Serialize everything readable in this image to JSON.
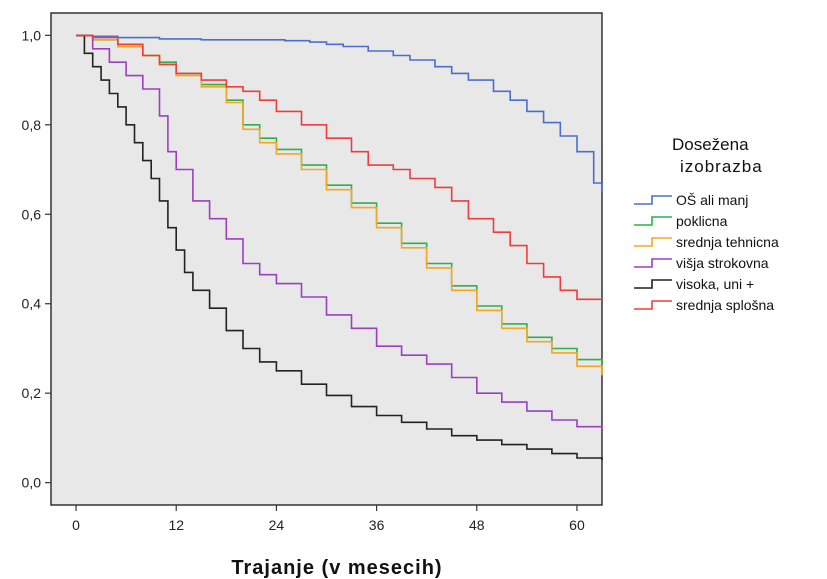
{
  "chart_data": {
    "type": "line",
    "step": true,
    "title": "",
    "xlabel": "Trajanje (v mesecih)",
    "ylabel": "",
    "xlim": [
      -3,
      63
    ],
    "ylim": [
      -0.05,
      1.05
    ],
    "xticks": [
      0,
      12,
      24,
      36,
      48,
      60
    ],
    "xtick_labels": [
      "0",
      "12",
      "24",
      "36",
      "48",
      "60"
    ],
    "yticks": [
      0.0,
      0.2,
      0.4,
      0.6,
      0.8,
      1.0
    ],
    "ytick_labels": [
      "0,0",
      "0,2",
      "0,4",
      "0,6",
      "0,8",
      "1,0"
    ],
    "grid": false,
    "background": "#e8e8e8",
    "legend": {
      "title_line1": "Dosežena",
      "title_line2": "izobrazba",
      "placement": "right"
    },
    "series": [
      {
        "name": "OŠ ali manj",
        "color": "#4a6ecf",
        "x": [
          0,
          2,
          5,
          10,
          15,
          20,
          25,
          28,
          30,
          32,
          35,
          38,
          40,
          43,
          45,
          47,
          50,
          52,
          54,
          56,
          58,
          60,
          62,
          63
        ],
        "y": [
          1.0,
          0.998,
          0.995,
          0.992,
          0.99,
          0.99,
          0.988,
          0.985,
          0.98,
          0.975,
          0.965,
          0.955,
          0.945,
          0.93,
          0.915,
          0.9,
          0.875,
          0.855,
          0.83,
          0.805,
          0.775,
          0.74,
          0.67,
          0.65
        ]
      },
      {
        "name": "poklicna",
        "color": "#2fb04a",
        "x": [
          0,
          2,
          5,
          8,
          10,
          12,
          15,
          18,
          20,
          22,
          24,
          27,
          30,
          33,
          36,
          39,
          42,
          45,
          48,
          51,
          54,
          57,
          60,
          63
        ],
        "y": [
          1.0,
          0.99,
          0.975,
          0.955,
          0.94,
          0.915,
          0.89,
          0.855,
          0.8,
          0.77,
          0.745,
          0.71,
          0.665,
          0.625,
          0.58,
          0.535,
          0.49,
          0.44,
          0.395,
          0.355,
          0.325,
          0.3,
          0.275,
          0.26
        ]
      },
      {
        "name": "srednja tehnicna",
        "color": "#f5a623",
        "x": [
          0,
          2,
          5,
          8,
          10,
          12,
          15,
          18,
          20,
          22,
          24,
          27,
          30,
          33,
          36,
          39,
          42,
          45,
          48,
          51,
          54,
          57,
          60,
          63
        ],
        "y": [
          1.0,
          0.99,
          0.975,
          0.955,
          0.935,
          0.91,
          0.885,
          0.85,
          0.79,
          0.76,
          0.735,
          0.7,
          0.655,
          0.615,
          0.57,
          0.525,
          0.48,
          0.43,
          0.385,
          0.345,
          0.315,
          0.29,
          0.26,
          0.24
        ]
      },
      {
        "name": "višja strokovna",
        "color": "#9b3fc2",
        "x": [
          0,
          2,
          4,
          6,
          8,
          10,
          11,
          12,
          14,
          16,
          18,
          20,
          22,
          24,
          27,
          30,
          33,
          36,
          39,
          42,
          45,
          48,
          51,
          54,
          57,
          60,
          63
        ],
        "y": [
          1.0,
          0.97,
          0.94,
          0.91,
          0.88,
          0.82,
          0.74,
          0.7,
          0.63,
          0.59,
          0.545,
          0.49,
          0.465,
          0.445,
          0.415,
          0.375,
          0.345,
          0.305,
          0.285,
          0.265,
          0.235,
          0.2,
          0.18,
          0.16,
          0.14,
          0.125,
          0.12
        ]
      },
      {
        "name": "visoka, uni +",
        "color": "#222222",
        "x": [
          0,
          1,
          2,
          3,
          4,
          5,
          6,
          7,
          8,
          9,
          10,
          11,
          12,
          13,
          14,
          16,
          18,
          20,
          22,
          24,
          27,
          30,
          33,
          36,
          39,
          42,
          45,
          48,
          51,
          54,
          57,
          60,
          63
        ],
        "y": [
          1.0,
          0.96,
          0.93,
          0.9,
          0.87,
          0.84,
          0.8,
          0.76,
          0.72,
          0.68,
          0.63,
          0.57,
          0.52,
          0.47,
          0.43,
          0.39,
          0.34,
          0.3,
          0.27,
          0.25,
          0.22,
          0.195,
          0.17,
          0.15,
          0.135,
          0.12,
          0.105,
          0.095,
          0.085,
          0.075,
          0.065,
          0.055,
          0.05
        ]
      },
      {
        "name": "srednja splošna",
        "color": "#f03c3c",
        "x": [
          0,
          2,
          5,
          8,
          10,
          12,
          15,
          18,
          20,
          22,
          24,
          27,
          30,
          33,
          35,
          38,
          40,
          43,
          45,
          47,
          50,
          52,
          54,
          56,
          58,
          60,
          63
        ],
        "y": [
          1.0,
          0.995,
          0.98,
          0.955,
          0.935,
          0.915,
          0.9,
          0.885,
          0.875,
          0.855,
          0.83,
          0.8,
          0.77,
          0.74,
          0.71,
          0.7,
          0.68,
          0.66,
          0.63,
          0.59,
          0.56,
          0.53,
          0.49,
          0.46,
          0.43,
          0.41,
          0.41
        ]
      }
    ]
  }
}
